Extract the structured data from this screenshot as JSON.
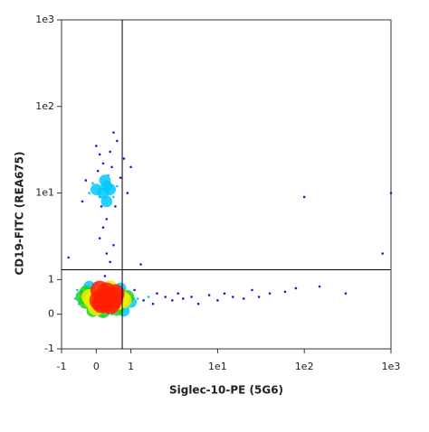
{
  "chart_data": {
    "type": "scatter",
    "x_label": "Siglec-10-PE (5G6)",
    "y_label": "CD19-FITC (REA675)",
    "scale": "biexponential",
    "xlim": [
      -1,
      1000
    ],
    "ylim": [
      -1,
      1000
    ],
    "xticks": [
      -1,
      0,
      1,
      {
        "value": 10,
        "label": "1e1"
      },
      {
        "value": 100,
        "label": "1e2"
      },
      {
        "value": 1000,
        "label": "1e3"
      }
    ],
    "yticks": [
      -1,
      0,
      1,
      {
        "value": 10,
        "label": "1e1"
      },
      {
        "value": 100,
        "label": "1e2"
      },
      {
        "value": 1000,
        "label": "1e3"
      }
    ],
    "quadrant_gate": {
      "x": 0.75,
      "y": 1.3
    },
    "colormap": [
      "#1a1ae6",
      "#00c8ff",
      "#20d020",
      "#f0f000",
      "#ff2000"
    ],
    "x": [
      0.3,
      0.2,
      0.35,
      0.1,
      0.45,
      0.25,
      0.15,
      0.4,
      0.05,
      0.5,
      -0.1,
      0.6,
      -0.2,
      0.7,
      -0.3,
      0.8,
      0.0,
      0.3,
      0.2,
      0.55,
      -0.4,
      0.9,
      1.0,
      -0.5,
      1.2,
      0.4,
      0.1,
      -0.3,
      0.6,
      -0.1,
      1.4,
      -0.6,
      0.3,
      0.2,
      0.7,
      1.6,
      -0.2,
      0.8,
      0.0,
      1.1,
      -0.55,
      0.45,
      1.8,
      2.0,
      0.25,
      0.2,
      0.3,
      0.1,
      0.4,
      0.25,
      0.0,
      0.5,
      0.15,
      0.35,
      -0.1,
      0.6,
      0.3,
      0.05,
      0.45,
      -0.2,
      0.7,
      0.2,
      0.55,
      -0.3,
      0.1,
      0.4,
      0.8,
      0.3,
      0.6,
      0.0,
      0.9,
      -0.4,
      0.2,
      1.0,
      0.5,
      2.5,
      3,
      3.5,
      4,
      5,
      6,
      8,
      10,
      12,
      15,
      20,
      25,
      30,
      40,
      60,
      80,
      150,
      300,
      0.3,
      0.5,
      0.1,
      0.4,
      -0.8,
      1.3,
      100,
      800,
      1000
    ],
    "y": [
      0.4,
      0.35,
      0.45,
      0.4,
      0.4,
      0.5,
      0.3,
      0.3,
      0.5,
      0.5,
      0.4,
      0.35,
      0.5,
      0.45,
      0.35,
      0.4,
      0.2,
      0.65,
      0.1,
      0.6,
      0.5,
      0.5,
      0.35,
      0.3,
      0.45,
      0.75,
      0.7,
      0.65,
      0.15,
      0.1,
      0.4,
      0.45,
      0.9,
      -0.05,
      0.75,
      0.5,
      0.8,
      0.1,
      0.9,
      0.7,
      0.7,
      0.0,
      0.3,
      0.6,
      1.1,
      10,
      12,
      9,
      11,
      14,
      11,
      9,
      7,
      16,
      13,
      12,
      8,
      18,
      20,
      10,
      15,
      22,
      7,
      14,
      28,
      30,
      25,
      5,
      40,
      35,
      10,
      8,
      4,
      20,
      50,
      0.5,
      0.4,
      0.6,
      0.45,
      0.5,
      0.3,
      0.55,
      0.4,
      0.6,
      0.5,
      0.45,
      0.7,
      0.5,
      0.6,
      0.65,
      0.75,
      0.8,
      0.6,
      2,
      2.5,
      3,
      1.6,
      1.8,
      1.5,
      9,
      2,
      10
    ]
  }
}
